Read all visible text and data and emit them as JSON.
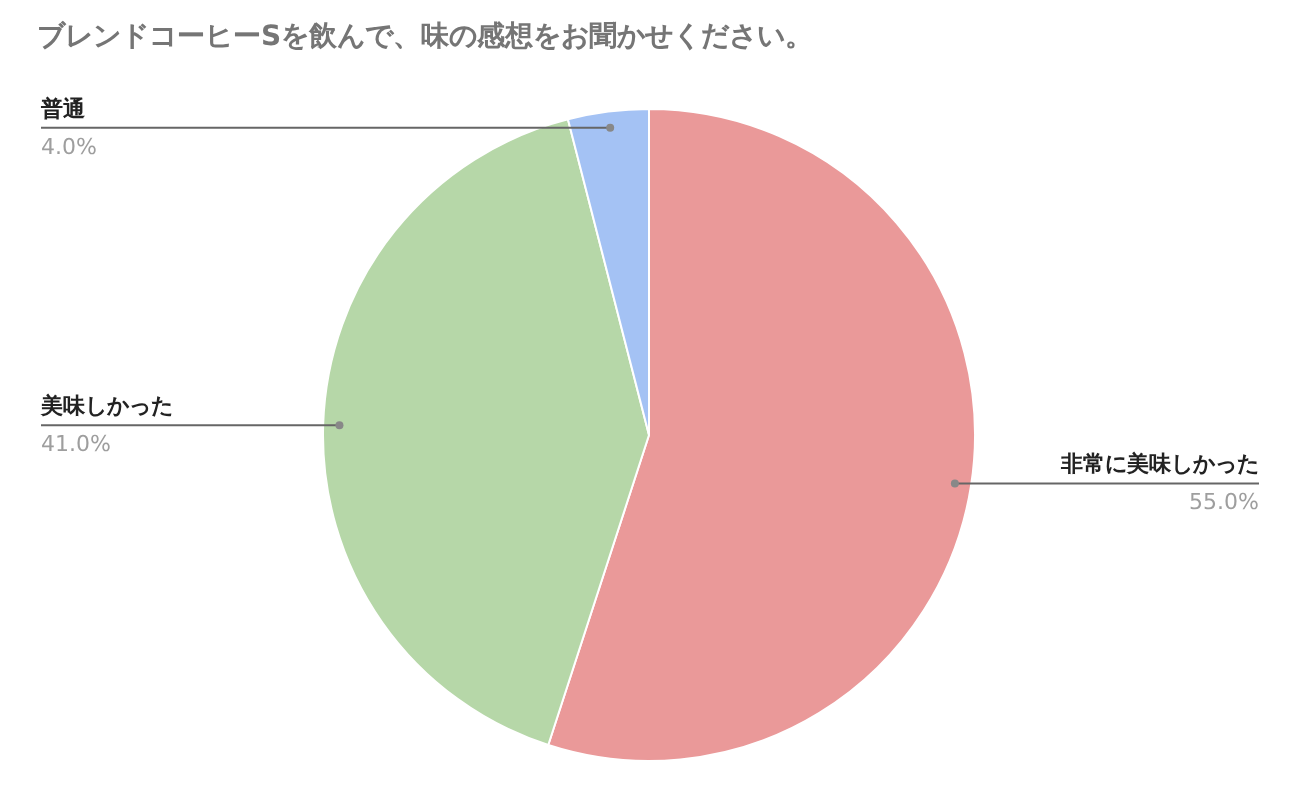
{
  "chart_data": {
    "type": "pie",
    "title": "ブレンドコーヒーSを飲んで、味の感想をお聞かせください。",
    "categories": [
      "非常に美味しかった",
      "美味しかった",
      "普通"
    ],
    "values": [
      55,
      41,
      4
    ],
    "value_labels": [
      "55.0%",
      "41.0%",
      "4.0%"
    ],
    "colors": [
      "#ea9999",
      "#b6d7a8",
      "#a4c2f4"
    ]
  }
}
